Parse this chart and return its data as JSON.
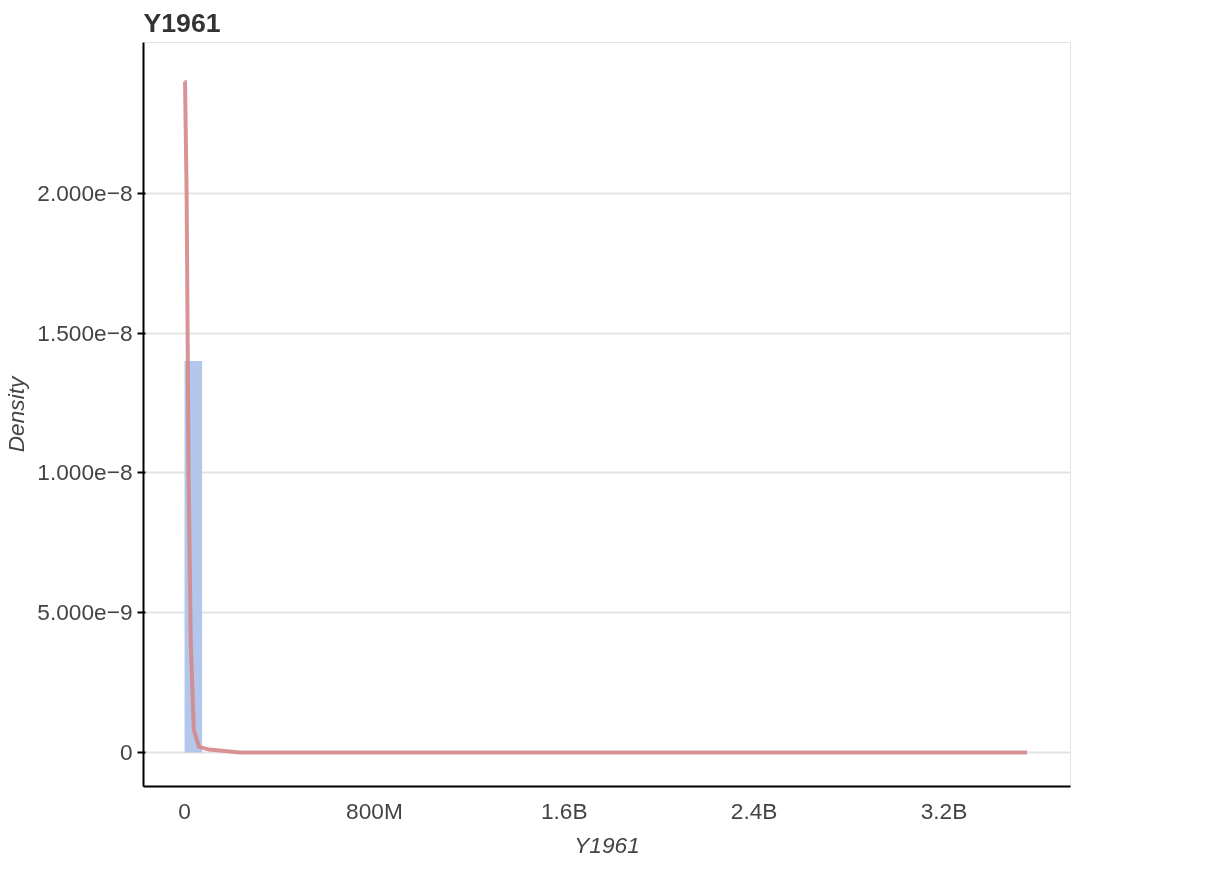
{
  "chart_data": {
    "type": "histogram",
    "title": "Y1961",
    "xlabel": "Y1961",
    "ylabel": "Density",
    "bins": [
      0,
      74000000
    ],
    "values": [
      1.4e-08
    ],
    "color": "#aec4ea",
    "series": [
      {
        "type": "line",
        "color": "#d4878a",
        "x": [
          0,
          2000000,
          8700000,
          17000000,
          26000000,
          39000000,
          61000000,
          104000000,
          234000000,
          1000000000,
          2000000000,
          3550000000
        ],
        "values": [
          2.4e-08,
          2.4e-08,
          2e-08,
          1e-08,
          4e-09,
          8e-10,
          2e-10,
          1e-10,
          0,
          0,
          0,
          0
        ]
      }
    ],
    "xlim": [
      -173000000,
      3733000000
    ],
    "ylim": [
      -1.22e-09,
      2.54e-08
    ],
    "xticks": [
      {
        "value": 0,
        "label": "0"
      },
      {
        "value": 800000000,
        "label": "800M"
      },
      {
        "value": 1600000000,
        "label": "1.6B"
      },
      {
        "value": 2400000000,
        "label": "2.4B"
      },
      {
        "value": 3200000000,
        "label": "3.2B"
      }
    ],
    "yticks": [
      {
        "value": 0,
        "label": "0"
      },
      {
        "value": 5e-09,
        "label": "5.000e−9"
      },
      {
        "value": 1e-08,
        "label": "1.000e−8"
      },
      {
        "value": 1.5e-08,
        "label": "1.500e−8"
      },
      {
        "value": 2e-08,
        "label": "2.000e−8"
      }
    ],
    "grid": "y"
  }
}
